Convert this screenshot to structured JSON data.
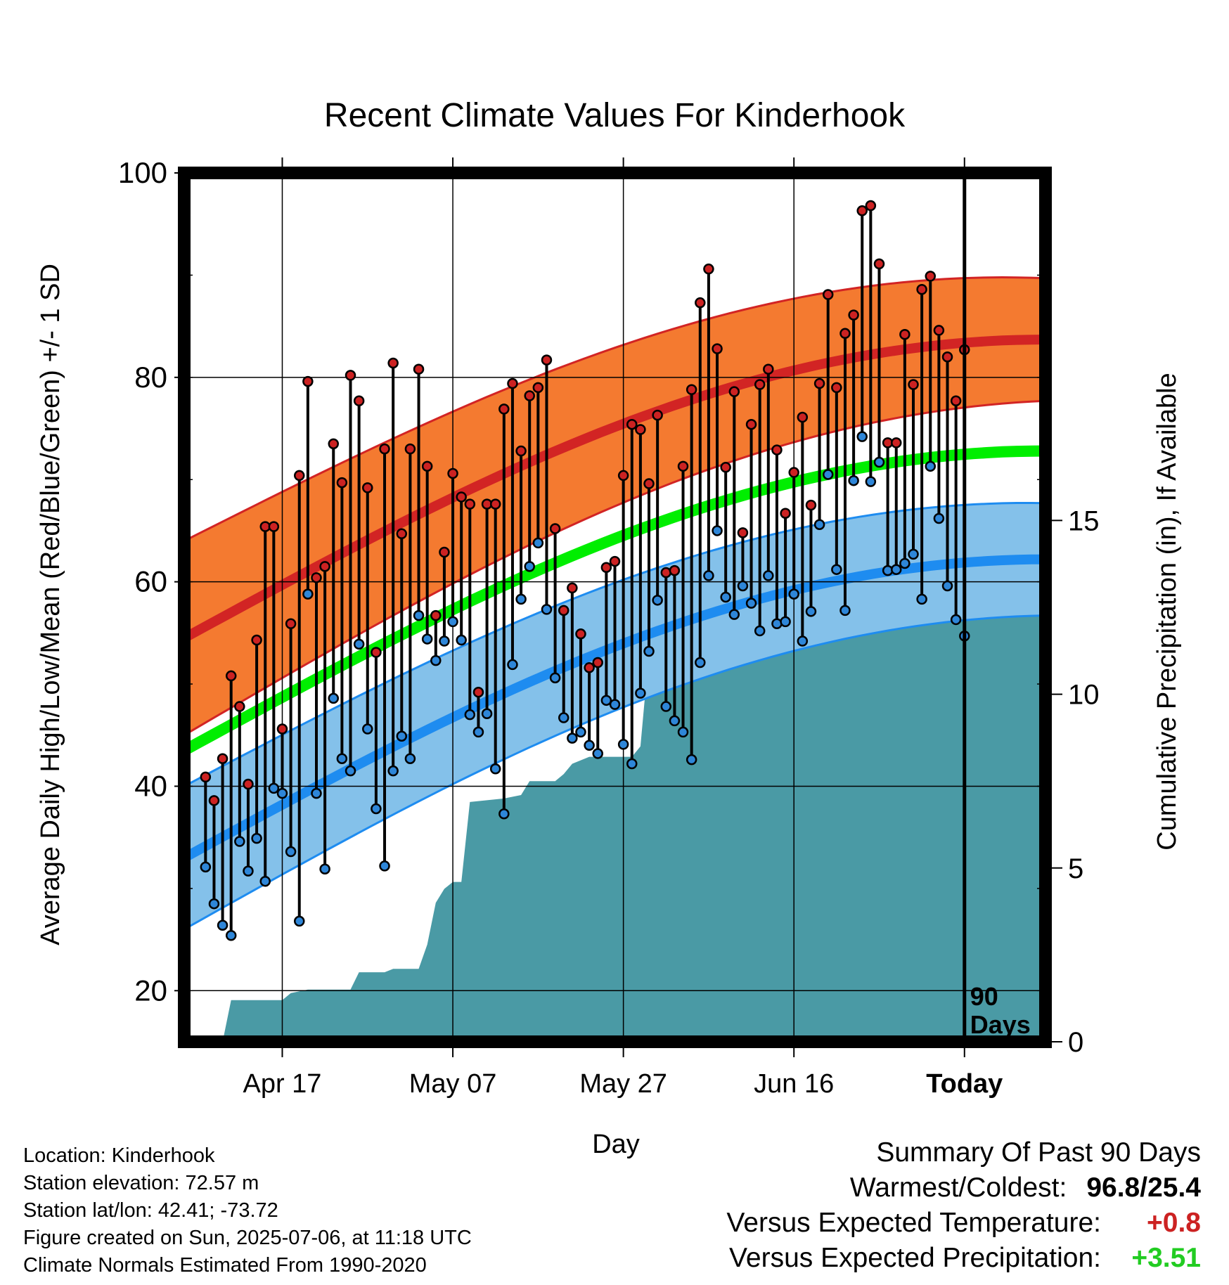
{
  "chart_data": {
    "type": "line",
    "title": "Recent Climate Values For Kinderhook",
    "xlabel": "Day",
    "ylabel": "Average Daily High/Low/Mean (Red/Blue/Green) +/- 1 SD",
    "y2label": "Cumulative Precipitation (in), If Available",
    "ylim": [
      15,
      100
    ],
    "y_ticks": [
      20,
      40,
      60,
      80,
      100
    ],
    "y2lim": [
      0,
      25
    ],
    "y2_ticks": [
      0,
      5,
      10,
      15
    ],
    "x_tick_labels": [
      "Apr 17",
      "May 07",
      "May 27",
      "Jun 16",
      "Today"
    ],
    "x_tick_days": [
      -80,
      -60,
      -40,
      -20,
      0
    ],
    "xlim": [
      -91.5,
      9.5
    ],
    "days_label": "90\nDays",
    "grid": true,
    "normal_high": {
      "start": 54.5,
      "end": 83.7,
      "sd_start": 9.5,
      "sd_end": 6.0
    },
    "normal_mean": {
      "start": 43.5,
      "end": 72.8
    },
    "normal_low": {
      "start": 33.0,
      "end": 62.2,
      "sd_start": 7.0,
      "sd_end": 5.5
    },
    "daily_highs": [
      40.9,
      38.6,
      42.7,
      50.8,
      47.8,
      40.2,
      54.3,
      65.4,
      65.4,
      45.6,
      55.9,
      70.4,
      79.6,
      60.4,
      61.5,
      73.5,
      69.7,
      80.2,
      77.7,
      69.2,
      53.1,
      73.0,
      81.4,
      64.7,
      73.0,
      80.8,
      71.3,
      56.7,
      62.9,
      70.6,
      68.3,
      67.6,
      49.2,
      67.6,
      67.6,
      76.9,
      79.4,
      72.8,
      78.2,
      79.0,
      81.7,
      65.2,
      57.2,
      59.4,
      54.9,
      51.6,
      52.1,
      61.4,
      62.0,
      70.4,
      75.4,
      74.9,
      69.6,
      76.3,
      60.9,
      61.1,
      71.3,
      78.8,
      87.3,
      90.6,
      82.8,
      71.2,
      78.6,
      64.8,
      75.4,
      79.3,
      80.8,
      72.9,
      66.7,
      70.7,
      76.1,
      67.5,
      79.4,
      88.1,
      79.0,
      84.3,
      86.1,
      96.3,
      96.8,
      91.1,
      73.6,
      73.6,
      84.2,
      79.3,
      88.6,
      89.9,
      84.6,
      82.0,
      77.7,
      82.7
    ],
    "daily_lows": [
      32.1,
      28.5,
      26.4,
      25.4,
      34.6,
      31.7,
      34.9,
      30.7,
      39.8,
      39.3,
      33.6,
      26.8,
      58.8,
      39.3,
      31.9,
      48.6,
      42.7,
      41.5,
      53.9,
      45.6,
      37.8,
      32.2,
      41.5,
      44.9,
      42.7,
      56.7,
      54.4,
      52.3,
      54.2,
      56.1,
      54.3,
      47.0,
      45.3,
      47.1,
      41.7,
      37.3,
      51.9,
      58.3,
      61.5,
      63.8,
      57.3,
      50.6,
      46.7,
      44.7,
      45.3,
      44.0,
      43.2,
      48.4,
      48.0,
      44.1,
      42.2,
      49.1,
      53.2,
      58.2,
      47.8,
      46.4,
      45.3,
      42.6,
      52.1,
      60.6,
      65.0,
      58.5,
      56.8,
      59.6,
      57.9,
      55.2,
      60.6,
      55.9,
      56.1,
      58.8,
      54.2,
      57.1,
      65.6,
      70.5,
      61.2,
      57.2,
      69.9,
      74.2,
      69.8,
      71.7,
      61.1,
      61.2,
      61.8,
      62.7,
      58.3,
      71.3,
      66.2,
      59.6,
      56.3,
      54.7
    ],
    "precip_series": [
      [
        -91,
        0
      ],
      [
        -87,
        0
      ],
      [
        -86,
        1.2
      ],
      [
        -80,
        1.2
      ],
      [
        -79,
        1.4
      ],
      [
        -77,
        1.5
      ],
      [
        -72,
        1.5
      ],
      [
        -71,
        2.0
      ],
      [
        -68,
        2.0
      ],
      [
        -67,
        2.1
      ],
      [
        -64,
        2.1
      ],
      [
        -63,
        2.8
      ],
      [
        -62,
        4.0
      ],
      [
        -61,
        4.4
      ],
      [
        -60,
        4.6
      ],
      [
        -59,
        4.6
      ],
      [
        -58,
        6.9
      ],
      [
        -54,
        7.0
      ],
      [
        -52,
        7.1
      ],
      [
        -51,
        7.5
      ],
      [
        -48,
        7.5
      ],
      [
        -47,
        7.7
      ],
      [
        -46,
        8.0
      ],
      [
        -44,
        8.2
      ],
      [
        -39,
        8.2
      ],
      [
        -38,
        8.5
      ],
      [
        -37,
        11.2
      ],
      [
        -32,
        11.2
      ],
      [
        -31,
        11.8
      ],
      [
        -30,
        12.3
      ],
      [
        -28,
        12.4
      ],
      [
        -27,
        12.9
      ],
      [
        -24,
        12.9
      ],
      [
        -23,
        13.2
      ],
      [
        -20,
        13.2
      ],
      [
        -19,
        13.3
      ],
      [
        -18,
        13.6
      ],
      [
        -13,
        13.7
      ],
      [
        -5,
        13.7
      ],
      [
        -4,
        14.6
      ],
      [
        -3,
        14.7
      ],
      [
        9,
        14.7
      ]
    ]
  },
  "info": {
    "location": "Location: Kinderhook",
    "elevation": "Station elevation: 72.57 m",
    "latlon": "Station lat/lon: 42.41; -73.72",
    "created": "Figure created on Sun, 2025-07-06, at 11:18 UTC",
    "normals": "Climate Normals Estimated From 1990-2020"
  },
  "summary": {
    "title": "Summary Of Past 90 Days",
    "warm_cold_label": "Warmest/Coldest:",
    "warm_cold_value": "96.8/25.4",
    "temp_label": "Versus Expected Temperature:",
    "temp_value": "+0.8",
    "precip_label": "Versus Expected Precipitation:",
    "precip_value": "+3.51"
  },
  "colors": {
    "high_band": "#f47a30",
    "high_line": "#d22424",
    "mean_line": "#00ee00",
    "low_band": "#84c1ea",
    "low_line": "#1e8cf0",
    "precip": "#4a9aa5",
    "high_marker": "#cc2222",
    "low_marker": "#2e86d8",
    "temp_value": "#cc2222",
    "precip_value": "#22cc22"
  }
}
